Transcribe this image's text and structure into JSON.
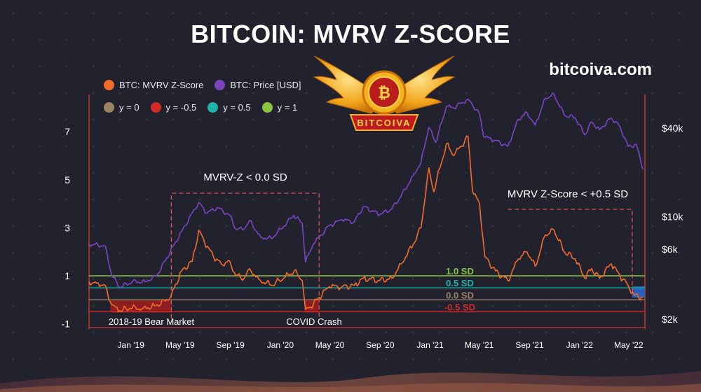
{
  "title": "BITCOIN: MVRV Z-SCORE",
  "site": "bitcoiva.com",
  "logo": {
    "text": "BITCOIVA",
    "icon": "bitcoin-icon"
  },
  "legend": {
    "row1": [
      {
        "label": "BTC: MVRV Z-Score",
        "color": "#f26b2a"
      },
      {
        "label": "BTC: Price [USD]",
        "color": "#7b45c2"
      }
    ],
    "row2": [
      {
        "label": "y = 0",
        "color": "#9c8266"
      },
      {
        "label": "y = -0.5",
        "color": "#d42a2a"
      },
      {
        "label": "y = 0.5",
        "color": "#1fb3aa"
      },
      {
        "label": "y = 1",
        "color": "#8cc63f"
      }
    ]
  },
  "chart_data": {
    "type": "line",
    "x_ticks": [
      "Jan '19",
      "May '19",
      "Sep '19",
      "Jan '20",
      "May '20",
      "Sep '20",
      "Jan '21",
      "May '21",
      "Sep '21",
      "Jan '22",
      "May '22"
    ],
    "y_left_ticks": [
      "7",
      "5",
      "3",
      "1",
      "-1"
    ],
    "y_left_values": [
      7,
      5,
      3,
      1,
      -1
    ],
    "y_left_range": [
      -1,
      8
    ],
    "y_right_ticks": [
      "$40k",
      "$10k",
      "$6k",
      "$2k"
    ],
    "y_right_values": [
      40000,
      10000,
      6000,
      2000
    ],
    "y_right_scale": "log",
    "x_range": [
      "2018-10-01",
      "2022-06-20"
    ],
    "reference_lines": [
      {
        "label": "1.0 SD",
        "y": 1.0,
        "color": "#8cc63f"
      },
      {
        "label": "0.5 SD",
        "y": 0.5,
        "color": "#1fb3aa"
      },
      {
        "label": "0.0 SD",
        "y": 0.0,
        "color": "#9c8266"
      },
      {
        "label": "-0.5 SD",
        "y": -0.5,
        "color": "#d42a2a"
      }
    ],
    "annotations": [
      {
        "label": "MVRV-Z < 0.0 SD"
      },
      {
        "label": "MVRV Z-Score < +0.5 SD"
      },
      {
        "label": "2018-19 Bear Market"
      },
      {
        "label": "COVID Crash"
      }
    ],
    "series": [
      {
        "name": "BTC: MVRV Z-Score",
        "color": "#f26b2a",
        "points": [
          [
            "2018-10-01",
            0.75
          ],
          [
            "2018-10-20",
            0.7
          ],
          [
            "2018-11-10",
            0.6
          ],
          [
            "2018-11-22",
            -0.1
          ],
          [
            "2018-12-05",
            -0.3
          ],
          [
            "2018-12-15",
            -0.45
          ],
          [
            "2019-01-10",
            -0.35
          ],
          [
            "2019-02-10",
            -0.35
          ],
          [
            "2019-03-10",
            -0.25
          ],
          [
            "2019-04-05",
            -0.05
          ],
          [
            "2019-04-20",
            0.2
          ],
          [
            "2019-05-15",
            1.2
          ],
          [
            "2019-06-10",
            1.6
          ],
          [
            "2019-06-26",
            2.9
          ],
          [
            "2019-07-10",
            2.4
          ],
          [
            "2019-08-01",
            1.8
          ],
          [
            "2019-08-20",
            1.5
          ],
          [
            "2019-09-10",
            1.6
          ],
          [
            "2019-09-25",
            1.0
          ],
          [
            "2019-10-15",
            0.9
          ],
          [
            "2019-10-28",
            1.3
          ],
          [
            "2019-11-20",
            0.85
          ],
          [
            "2019-12-20",
            0.6
          ],
          [
            "2020-01-20",
            0.9
          ],
          [
            "2020-02-14",
            1.2
          ],
          [
            "2020-03-05",
            0.8
          ],
          [
            "2020-03-13",
            -0.4
          ],
          [
            "2020-03-25",
            -0.3
          ],
          [
            "2020-04-15",
            0.1
          ],
          [
            "2020-05-10",
            0.55
          ],
          [
            "2020-06-10",
            0.55
          ],
          [
            "2020-07-10",
            0.6
          ],
          [
            "2020-08-01",
            0.9
          ],
          [
            "2020-09-10",
            0.8
          ],
          [
            "2020-10-10",
            0.9
          ],
          [
            "2020-11-01",
            1.5
          ],
          [
            "2020-12-01",
            2.3
          ],
          [
            "2020-12-20",
            3.0
          ],
          [
            "2021-01-08",
            5.5
          ],
          [
            "2021-01-20",
            4.5
          ],
          [
            "2021-02-20",
            6.5
          ],
          [
            "2021-03-10",
            6.0
          ],
          [
            "2021-04-14",
            6.8
          ],
          [
            "2021-04-25",
            4.5
          ],
          [
            "2021-05-12",
            4.0
          ],
          [
            "2021-05-25",
            1.8
          ],
          [
            "2021-06-20",
            1.2
          ],
          [
            "2021-07-20",
            0.8
          ],
          [
            "2021-08-15",
            1.7
          ],
          [
            "2021-09-05",
            2.0
          ],
          [
            "2021-09-25",
            1.4
          ],
          [
            "2021-10-20",
            2.7
          ],
          [
            "2021-11-10",
            2.9
          ],
          [
            "2021-12-05",
            2.0
          ],
          [
            "2022-01-01",
            1.7
          ],
          [
            "2022-01-24",
            0.9
          ],
          [
            "2022-02-10",
            1.3
          ],
          [
            "2022-03-01",
            0.9
          ],
          [
            "2022-03-30",
            1.5
          ],
          [
            "2022-04-20",
            1.0
          ],
          [
            "2022-05-10",
            0.6
          ],
          [
            "2022-05-25",
            0.2
          ],
          [
            "2022-06-15",
            0.1
          ]
        ]
      },
      {
        "name": "BTC: Price [USD]",
        "color": "#7b45c2",
        "points": [
          [
            "2018-10-01",
            6500
          ],
          [
            "2018-11-10",
            6300
          ],
          [
            "2018-11-25",
            4000
          ],
          [
            "2018-12-15",
            3300
          ],
          [
            "2019-01-15",
            3600
          ],
          [
            "2019-02-15",
            3600
          ],
          [
            "2019-03-15",
            3950
          ],
          [
            "2019-04-05",
            5000
          ],
          [
            "2019-05-15",
            7900
          ],
          [
            "2019-06-26",
            12500
          ],
          [
            "2019-07-15",
            10500
          ],
          [
            "2019-08-10",
            11500
          ],
          [
            "2019-09-10",
            10200
          ],
          [
            "2019-09-25",
            8200
          ],
          [
            "2019-10-15",
            8200
          ],
          [
            "2019-10-28",
            9400
          ],
          [
            "2019-11-25",
            7200
          ],
          [
            "2019-12-20",
            7100
          ],
          [
            "2020-01-20",
            8600
          ],
          [
            "2020-02-13",
            10200
          ],
          [
            "2020-03-05",
            9000
          ],
          [
            "2020-03-13",
            4900
          ],
          [
            "2020-04-01",
            6500
          ],
          [
            "2020-05-10",
            8700
          ],
          [
            "2020-06-10",
            9500
          ],
          [
            "2020-07-10",
            9200
          ],
          [
            "2020-08-01",
            11700
          ],
          [
            "2020-09-10",
            10300
          ],
          [
            "2020-10-10",
            11300
          ],
          [
            "2020-11-01",
            13700
          ],
          [
            "2020-12-01",
            19000
          ],
          [
            "2020-12-20",
            23500
          ],
          [
            "2021-01-08",
            40500
          ],
          [
            "2021-01-25",
            32000
          ],
          [
            "2021-02-20",
            56000
          ],
          [
            "2021-03-10",
            55000
          ],
          [
            "2021-04-14",
            63000
          ],
          [
            "2021-05-12",
            50000
          ],
          [
            "2021-05-22",
            35000
          ],
          [
            "2021-06-20",
            33000
          ],
          [
            "2021-07-20",
            30000
          ],
          [
            "2021-08-15",
            46000
          ],
          [
            "2021-09-05",
            51000
          ],
          [
            "2021-09-25",
            42000
          ],
          [
            "2021-10-20",
            64000
          ],
          [
            "2021-11-10",
            68000
          ],
          [
            "2021-12-05",
            49000
          ],
          [
            "2022-01-01",
            47000
          ],
          [
            "2022-01-24",
            36000
          ],
          [
            "2022-02-10",
            44000
          ],
          [
            "2022-03-01",
            39000
          ],
          [
            "2022-03-30",
            47000
          ],
          [
            "2022-04-20",
            41000
          ],
          [
            "2022-05-10",
            30000
          ],
          [
            "2022-05-30",
            31000
          ],
          [
            "2022-06-15",
            21000
          ]
        ]
      }
    ]
  }
}
